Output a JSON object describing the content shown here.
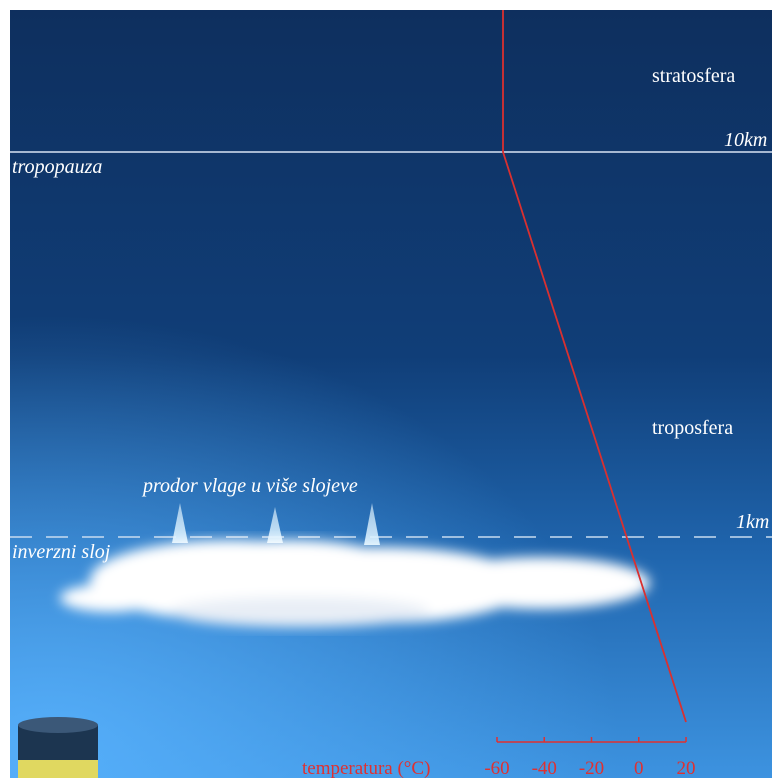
{
  "labels": {
    "stratosphere": "stratosfera",
    "tropopause_height": "10km",
    "tropopause": "tropopauza",
    "troposphere": "troposfera",
    "moisture": "prodor vlage u više slojeve",
    "inversion_height": "1km",
    "inversion": "inverzni sloj"
  },
  "temperature_axis": {
    "label": "temperatura (°C)",
    "ticks": [
      -60,
      -40,
      -20,
      0,
      20
    ],
    "lim": [
      -60,
      20
    ]
  }
}
